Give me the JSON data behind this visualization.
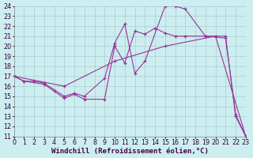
{
  "background_color": "#cceef0",
  "grid_color": "#aacccc",
  "line_color": "#993399",
  "xlabel": "Windchill (Refroidissement éolien,°C)",
  "xlabel_fontsize": 6.5,
  "tick_fontsize": 5.8,
  "xmin": 0,
  "xmax": 23,
  "ymin": 11,
  "ymax": 24,
  "line1_x": [
    0,
    1,
    2,
    3,
    5,
    6,
    7,
    9,
    10,
    11,
    12,
    13,
    15,
    16,
    17,
    19,
    21,
    22,
    23
  ],
  "line1_y": [
    17.0,
    16.5,
    16.5,
    16.3,
    15.0,
    15.3,
    15.0,
    16.8,
    20.3,
    22.2,
    17.3,
    18.5,
    24.0,
    24.0,
    23.7,
    21.0,
    20.8,
    13.2,
    11.0
  ],
  "line2_x": [
    0,
    1,
    3,
    4,
    5,
    6,
    7,
    9,
    10,
    11,
    12,
    13,
    14,
    15,
    16,
    17,
    19,
    21,
    22,
    23
  ],
  "line2_y": [
    17.0,
    16.5,
    16.2,
    15.5,
    14.8,
    15.2,
    14.7,
    14.7,
    20.0,
    18.3,
    21.5,
    21.2,
    21.8,
    21.3,
    21.0,
    21.0,
    21.0,
    21.0,
    13.0,
    11.0
  ],
  "line3_x": [
    0,
    5,
    10,
    15,
    20,
    23
  ],
  "line3_y": [
    17.0,
    16.0,
    18.5,
    20.0,
    21.0,
    11.0
  ]
}
